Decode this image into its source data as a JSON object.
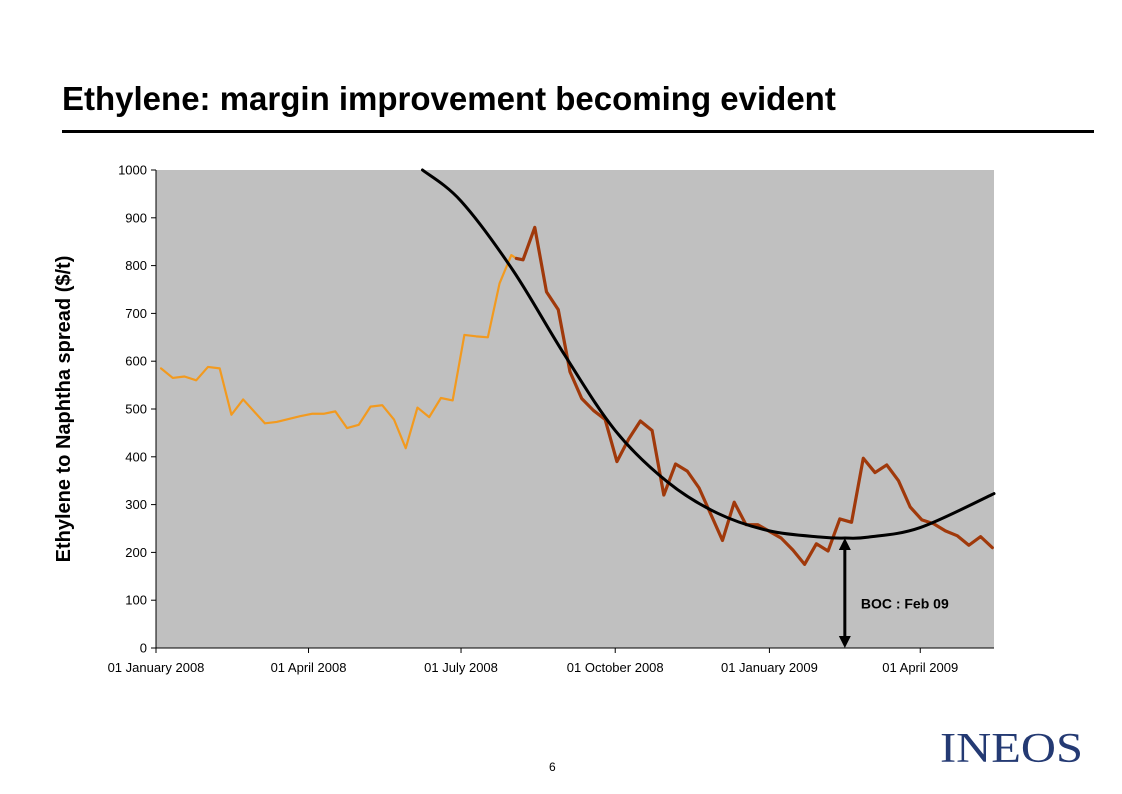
{
  "header": {
    "title": "Ethylene: margin improvement becoming evident"
  },
  "footer": {
    "page_number": "6",
    "logo_text": "INEOS"
  },
  "chart_data": {
    "type": "line",
    "title": "",
    "xlabel": "",
    "ylabel": "Ethylene to Naphtha spread ($/t)",
    "ylim": [
      0,
      1000
    ],
    "yticks": [
      "0",
      "100",
      "200",
      "300",
      "400",
      "500",
      "600",
      "700",
      "800",
      "900",
      "1000"
    ],
    "x_axis": {
      "type": "date",
      "min": "2008-01-01",
      "max": "2009-05-15"
    },
    "xtick_labels": [
      {
        "date": "2008-01-01",
        "label": "01 January 2008"
      },
      {
        "date": "2008-04-01",
        "label": "01 April 2008"
      },
      {
        "date": "2008-07-01",
        "label": "01 July 2008"
      },
      {
        "date": "2008-10-01",
        "label": "01 October 2008"
      },
      {
        "date": "2009-01-01",
        "label": "01 January 2009"
      },
      {
        "date": "2009-04-01",
        "label": "01 April 2009"
      }
    ],
    "grid": false,
    "background_color": "#c0c0c0",
    "series": [
      {
        "color": "#f29a1f",
        "points": [
          [
            "2008-01-04",
            585
          ],
          [
            "2008-01-11",
            565
          ],
          [
            "2008-01-18",
            568
          ],
          [
            "2008-01-25",
            560
          ],
          [
            "2008-02-01",
            588
          ],
          [
            "2008-02-08",
            585
          ],
          [
            "2008-02-15",
            488
          ],
          [
            "2008-02-22",
            520
          ],
          [
            "2008-03-06",
            470
          ],
          [
            "2008-03-13",
            473
          ],
          [
            "2008-03-27",
            485
          ],
          [
            "2008-04-03",
            490
          ],
          [
            "2008-04-10",
            490
          ],
          [
            "2008-04-17",
            495
          ],
          [
            "2008-04-24",
            460
          ],
          [
            "2008-05-01",
            467
          ],
          [
            "2008-05-08",
            505
          ],
          [
            "2008-05-15",
            508
          ],
          [
            "2008-05-22",
            478
          ],
          [
            "2008-05-29",
            418
          ],
          [
            "2008-06-05",
            503
          ],
          [
            "2008-06-12",
            483
          ],
          [
            "2008-06-19",
            523
          ],
          [
            "2008-06-26",
            518
          ],
          [
            "2008-07-03",
            655
          ],
          [
            "2008-07-10",
            652
          ],
          [
            "2008-07-17",
            650
          ],
          [
            "2008-07-24",
            763
          ],
          [
            "2008-07-31",
            822
          ],
          [
            "2008-08-03",
            815
          ]
        ]
      },
      {
        "color": "#a0390b",
        "points": [
          [
            "2008-08-03",
            815
          ],
          [
            "2008-08-07",
            812
          ],
          [
            "2008-08-14",
            880
          ],
          [
            "2008-08-21",
            745
          ],
          [
            "2008-08-28",
            708
          ],
          [
            "2008-09-04",
            578
          ],
          [
            "2008-09-11",
            522
          ],
          [
            "2008-09-18",
            497
          ],
          [
            "2008-09-25",
            478
          ],
          [
            "2008-10-02",
            390
          ],
          [
            "2008-10-09",
            437
          ],
          [
            "2008-10-16",
            475
          ],
          [
            "2008-10-23",
            455
          ],
          [
            "2008-10-30",
            320
          ],
          [
            "2008-11-06",
            385
          ],
          [
            "2008-11-13",
            370
          ],
          [
            "2008-11-20",
            335
          ],
          [
            "2008-11-27",
            280
          ],
          [
            "2008-12-04",
            225
          ],
          [
            "2008-12-11",
            305
          ],
          [
            "2008-12-18",
            258
          ],
          [
            "2008-12-25",
            258
          ],
          [
            "2009-01-08",
            230
          ],
          [
            "2009-01-15",
            205
          ],
          [
            "2009-01-22",
            175
          ],
          [
            "2009-01-29",
            218
          ],
          [
            "2009-02-05",
            203
          ],
          [
            "2009-02-12",
            270
          ],
          [
            "2009-02-19",
            263
          ],
          [
            "2009-02-26",
            397
          ],
          [
            "2009-03-05",
            367
          ],
          [
            "2009-03-12",
            383
          ],
          [
            "2009-03-19",
            350
          ],
          [
            "2009-03-26",
            295
          ],
          [
            "2009-04-02",
            268
          ],
          [
            "2009-04-09",
            260
          ],
          [
            "2009-04-16",
            245
          ],
          [
            "2009-04-23",
            235
          ],
          [
            "2009-04-30",
            215
          ],
          [
            "2009-05-07",
            233
          ],
          [
            "2009-05-14",
            210
          ]
        ]
      },
      {
        "type": "trend",
        "color": "#000000",
        "points": [
          [
            "2008-06-08",
            1000
          ],
          [
            "2008-07-01",
            935
          ],
          [
            "2008-08-01",
            790
          ],
          [
            "2008-09-01",
            612
          ],
          [
            "2008-10-01",
            455
          ],
          [
            "2008-11-01",
            348
          ],
          [
            "2008-12-01",
            282
          ],
          [
            "2009-01-01",
            245
          ],
          [
            "2009-02-01",
            232
          ],
          [
            "2009-02-15",
            230
          ],
          [
            "2009-03-01",
            232
          ],
          [
            "2009-04-01",
            252
          ],
          [
            "2009-05-15",
            323
          ]
        ]
      }
    ],
    "annotations": [
      {
        "text": "BOC : Feb 09",
        "arrow_date": "2009-02-15",
        "arrow_from": 0,
        "arrow_to": 230
      }
    ]
  }
}
